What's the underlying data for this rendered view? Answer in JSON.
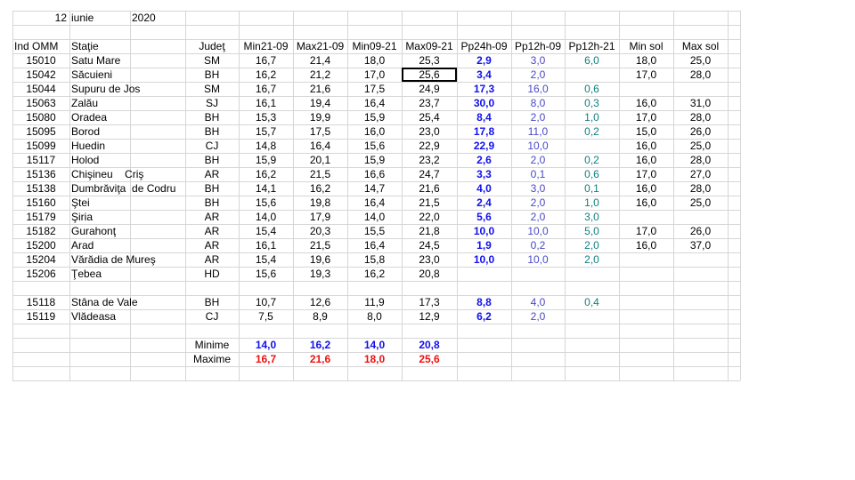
{
  "date": {
    "day": "12",
    "month": "iunie",
    "year": "2020"
  },
  "columns": [
    "Ind OMM",
    "Staţie",
    "Judeţ",
    "Min21-09",
    "Max21-09",
    "Min09-21",
    "Max09-21",
    "Pp24h-09",
    "Pp12h-09",
    "Pp12h-21",
    "Min sol",
    "Max sol"
  ],
  "stations": [
    [
      "15010",
      "Satu Mare",
      "SM",
      "16,7",
      "21,4",
      "18,0",
      "25,3",
      "2,9",
      "3,0",
      "6,0",
      "18,0",
      "25,0"
    ],
    [
      "15042",
      "Săcuieni",
      "BH",
      "16,2",
      "21,2",
      "17,0",
      "25,6",
      "3,4",
      "2,0",
      null,
      "17,0",
      "28,0"
    ],
    [
      "15044",
      "Supuru de Jos",
      "SM",
      "16,7",
      "21,6",
      "17,5",
      "24,9",
      "17,3",
      "16,0",
      "0,6",
      null,
      null
    ],
    [
      "15063",
      "Zalău",
      "SJ",
      "16,1",
      "19,4",
      "16,4",
      "23,7",
      "30,0",
      "8,0",
      "0,3",
      "16,0",
      "31,0"
    ],
    [
      "15080",
      "Oradea",
      "BH",
      "15,3",
      "19,9",
      "15,9",
      "25,4",
      "8,4",
      "2,0",
      "1,0",
      "17,0",
      "28,0"
    ],
    [
      "15095",
      "Borod",
      "BH",
      "15,7",
      "17,5",
      "16,0",
      "23,0",
      "17,8",
      "11,0",
      "0,2",
      "15,0",
      "26,0"
    ],
    [
      "15099",
      "Huedin",
      "CJ",
      "14,8",
      "16,4",
      "15,6",
      "22,9",
      "22,9",
      "10,0",
      null,
      "16,0",
      "25,0"
    ],
    [
      "15117",
      "Holod",
      "BH",
      "15,9",
      "20,1",
      "15,9",
      "23,2",
      "2,6",
      "2,0",
      "0,2",
      "16,0",
      "28,0"
    ],
    [
      "15136",
      "Chişineu    Criş",
      "AR",
      "16,2",
      "21,5",
      "16,6",
      "24,7",
      "3,3",
      "0,1",
      "0,6",
      "17,0",
      "27,0"
    ],
    [
      "15138",
      "Dumbrăviţa  de Codru",
      "BH",
      "14,1",
      "16,2",
      "14,7",
      "21,6",
      "4,0",
      "3,0",
      "0,1",
      "16,0",
      "28,0"
    ],
    [
      "15160",
      "Ştei",
      "BH",
      "15,6",
      "19,8",
      "16,4",
      "21,5",
      "2,4",
      "2,0",
      "1,0",
      "16,0",
      "25,0"
    ],
    [
      "15179",
      "Şiria",
      "AR",
      "14,0",
      "17,9",
      "14,0",
      "22,0",
      "5,6",
      "2,0",
      "3,0",
      null,
      null
    ],
    [
      "15182",
      "Gurahonţ",
      "AR",
      "15,4",
      "20,3",
      "15,5",
      "21,8",
      "10,0",
      "10,0",
      "5,0",
      "17,0",
      "26,0"
    ],
    [
      "15200",
      "Arad",
      "AR",
      "16,1",
      "21,5",
      "16,4",
      "24,5",
      "1,9",
      "0,2",
      "2,0",
      "16,0",
      "37,0"
    ],
    [
      "15204",
      "Vărădia de Mureş",
      "AR",
      "15,4",
      "19,6",
      "15,8",
      "23,0",
      "10,0",
      "10,0",
      "2,0",
      null,
      null
    ],
    [
      "15206",
      "Ţebea",
      "HD",
      "15,6",
      "19,3",
      "16,2",
      "20,8",
      null,
      null,
      null,
      null,
      null
    ]
  ],
  "mountain_stations": [
    [
      "15118",
      "Stâna de Vale",
      "BH",
      "10,7",
      "12,6",
      "11,9",
      "17,3",
      "8,8",
      "4,0",
      "0,4",
      null,
      null
    ],
    [
      "15119",
      "Vlădeasa",
      "CJ",
      "7,5",
      "8,9",
      "8,0",
      "12,9",
      "6,2",
      "2,0",
      null,
      null,
      null
    ]
  ],
  "summary": [
    {
      "label": "Minime",
      "values": [
        "14,0",
        "16,2",
        "14,0",
        "20,8"
      ]
    },
    {
      "label": "Maxime",
      "values": [
        "16,7",
        "21,6",
        "18,0",
        "25,6"
      ]
    }
  ]
}
